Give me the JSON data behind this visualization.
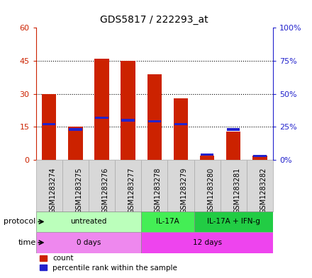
{
  "title": "GDS5817 / 222293_at",
  "samples": [
    "GSM1283274",
    "GSM1283275",
    "GSM1283276",
    "GSM1283277",
    "GSM1283278",
    "GSM1283279",
    "GSM1283280",
    "GSM1283281",
    "GSM1283282"
  ],
  "count_values": [
    30,
    15,
    46,
    45,
    39,
    28,
    2,
    13,
    2
  ],
  "percentile_values": [
    27,
    23,
    32,
    30,
    29,
    27,
    4,
    23,
    3
  ],
  "ylim_left": [
    0,
    60
  ],
  "ylim_right": [
    0,
    100
  ],
  "yticks_left": [
    0,
    15,
    30,
    45,
    60
  ],
  "yticks_right": [
    0,
    25,
    50,
    75,
    100
  ],
  "count_color": "#cc2200",
  "percentile_color": "#2222cc",
  "protocol_groups": [
    {
      "label": "untreated",
      "start": 0,
      "end": 4,
      "color": "#bbffbb"
    },
    {
      "label": "IL-17A",
      "start": 4,
      "end": 6,
      "color": "#44ee55"
    },
    {
      "label": "IL-17A + IFN-g",
      "start": 6,
      "end": 9,
      "color": "#22cc44"
    }
  ],
  "time_groups": [
    {
      "label": "0 days",
      "start": 0,
      "end": 4,
      "color": "#ee88ee"
    },
    {
      "label": "12 days",
      "start": 4,
      "end": 9,
      "color": "#ee44ee"
    }
  ],
  "protocol_label": "protocol",
  "time_label": "time",
  "bar_width": 0.55,
  "bg_color": "#d8d8d8",
  "grid_color": "#000000",
  "grid_linestyle": ":",
  "grid_linewidth": 0.8
}
